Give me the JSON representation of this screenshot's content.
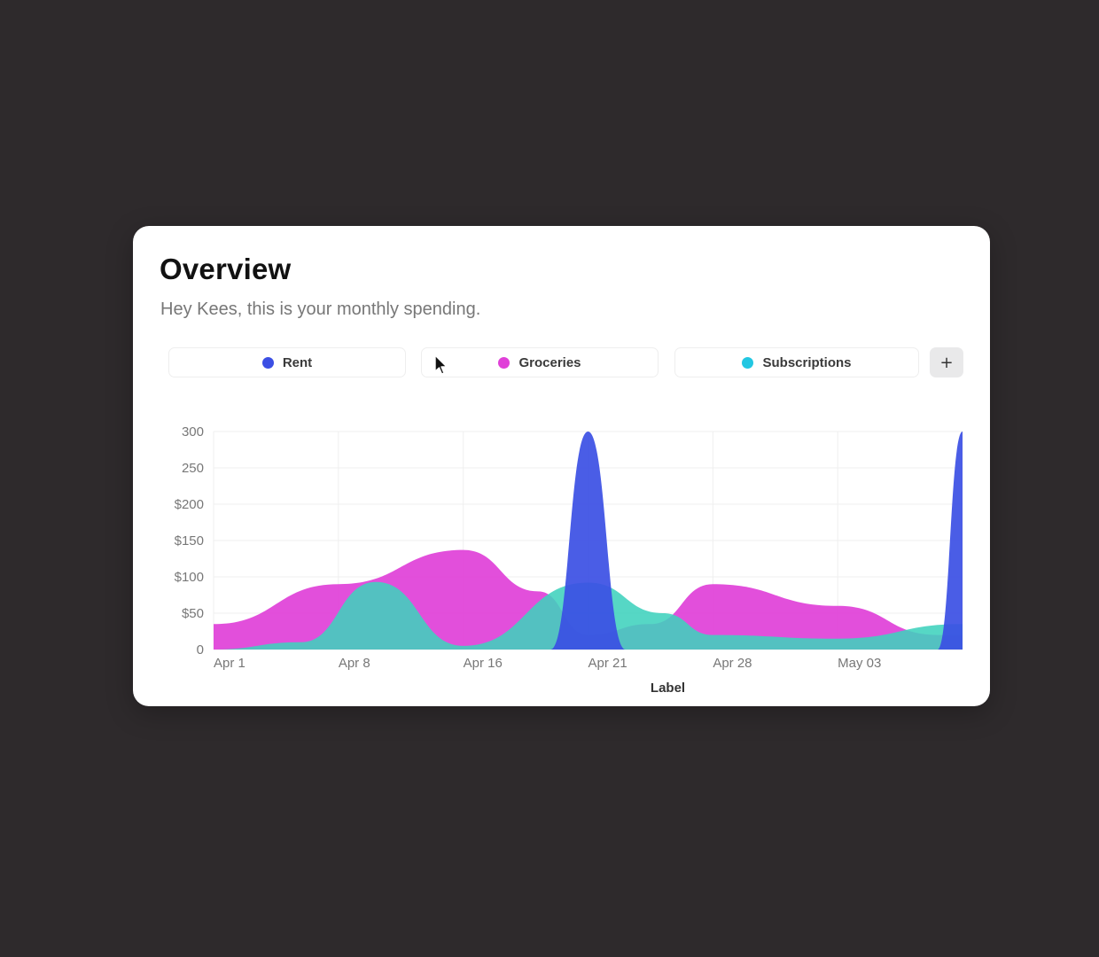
{
  "card": {
    "title": "Overview",
    "subtitle": "Hey Kees, this is your monthly spending."
  },
  "legend": {
    "items": [
      {
        "label": "Rent",
        "color": "#3b4fe4"
      },
      {
        "label": "Groceries",
        "color": "#e040d8"
      },
      {
        "label": "Subscriptions",
        "color": "#22c7e2"
      }
    ],
    "add_label": "+"
  },
  "chart_data": {
    "type": "area",
    "xlabel": "Label",
    "ylabel": "",
    "ylim": [
      0,
      300
    ],
    "yticks": [
      {
        "value": 0,
        "label": "0"
      },
      {
        "value": 50,
        "label": "$50"
      },
      {
        "value": 100,
        "label": "$100"
      },
      {
        "value": 150,
        "label": "$150"
      },
      {
        "value": 200,
        "label": "$200"
      },
      {
        "value": 250,
        "label": "250"
      },
      {
        "value": 300,
        "label": "300"
      }
    ],
    "x_ticks": [
      "Apr 1",
      "Apr 8",
      "Apr 16",
      "Apr 21",
      "Apr 28",
      "May 03"
    ],
    "grid": true,
    "series": [
      {
        "name": "Groceries",
        "color": "#e040d8",
        "points": [
          [
            0,
            35
          ],
          [
            1,
            90
          ],
          [
            2,
            137
          ],
          [
            2.6,
            80
          ],
          [
            3,
            20
          ],
          [
            3.5,
            35
          ],
          [
            4,
            90
          ],
          [
            5,
            60
          ],
          [
            5.8,
            20
          ],
          [
            6,
            20
          ]
        ]
      },
      {
        "name": "Subscriptions",
        "color": "#3fd1bd",
        "points": [
          [
            0,
            0
          ],
          [
            0.7,
            10
          ],
          [
            1.3,
            93
          ],
          [
            2,
            5
          ],
          [
            3,
            92
          ],
          [
            3.6,
            50
          ],
          [
            4,
            20
          ],
          [
            5,
            15
          ],
          [
            6,
            35
          ]
        ]
      },
      {
        "name": "Rent",
        "color": "#3b4fe4",
        "points": [
          [
            0,
            0
          ],
          [
            2.7,
            0
          ],
          [
            3,
            300
          ],
          [
            3.3,
            0
          ],
          [
            5.8,
            0
          ],
          [
            6,
            300
          ]
        ]
      }
    ]
  }
}
